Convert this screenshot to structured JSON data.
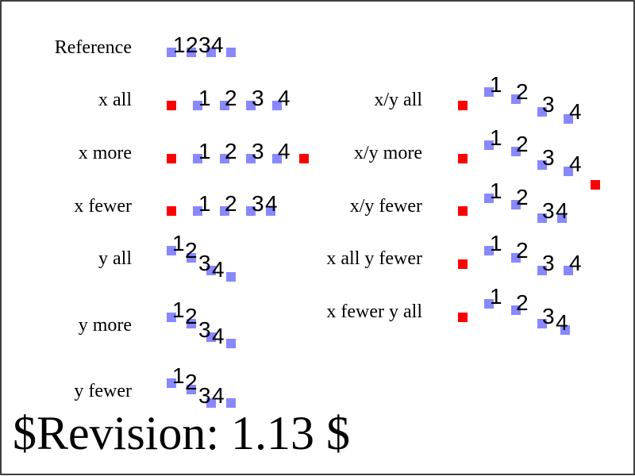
{
  "colors": {
    "marker_blue": "#8888ff",
    "marker_red": "#ff0000",
    "text": "#000000",
    "border": "#000000"
  },
  "glyphs": [
    "1",
    "2",
    "3",
    "4"
  ],
  "left_rows": [
    {
      "label": "Reference"
    },
    {
      "label": "x all"
    },
    {
      "label": "x more"
    },
    {
      "label": "x fewer"
    },
    {
      "label": "y all"
    },
    {
      "label": "y more"
    },
    {
      "label": "y fewer"
    }
  ],
  "right_rows": [
    {
      "label": "x/y all"
    },
    {
      "label": "x/y more"
    },
    {
      "label": "x/y fewer"
    },
    {
      "label": "x all y fewer"
    },
    {
      "label": "x fewer y all"
    }
  ],
  "footer": {
    "revision": "$Revision: 1.13 $"
  }
}
